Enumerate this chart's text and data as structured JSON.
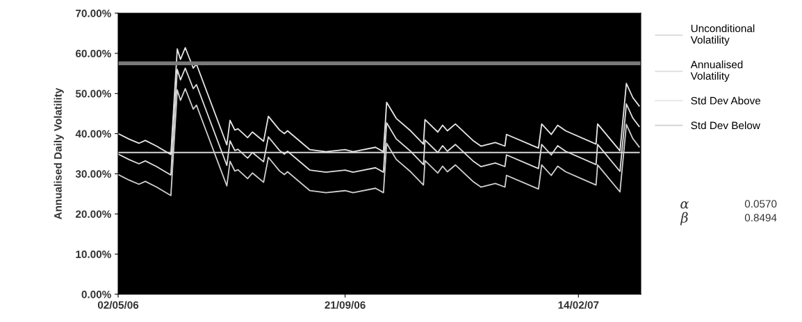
{
  "chart_data": {
    "type": "line",
    "ylabel": "Annualised Daily Volatility",
    "x": [
      "2006-05-02",
      "2006-05-09",
      "2006-05-15",
      "2006-05-19",
      "2006-05-26",
      "2006-06-04",
      "2006-06-08",
      "2006-06-10",
      "2006-06-13",
      "2006-06-18",
      "2006-06-20",
      "2006-07-09",
      "2006-07-11",
      "2006-07-14",
      "2006-07-16",
      "2006-07-22",
      "2006-07-25",
      "2006-08-01",
      "2006-08-04",
      "2006-08-11",
      "2006-08-14",
      "2006-08-16",
      "2006-08-30",
      "2006-09-09",
      "2006-09-21",
      "2006-09-26",
      "2006-10-10",
      "2006-10-15",
      "2006-10-17",
      "2006-10-23",
      "2006-11-01",
      "2006-11-09",
      "2006-11-10",
      "2006-11-18",
      "2006-11-21",
      "2006-11-24",
      "2006-11-29",
      "2006-12-10",
      "2006-12-15",
      "2006-12-24",
      "2006-12-30",
      "2006-12-31",
      "2007-01-20",
      "2007-01-22",
      "2007-01-28",
      "2007-02-01",
      "2007-02-06",
      "2007-02-25",
      "2007-02-26",
      "2007-03-12",
      "2007-03-16",
      "2007-03-20",
      "2007-03-24"
    ],
    "series": [
      {
        "name": "Unconditional Volatility",
        "color": "#d8d8d8",
        "x": [
          "2006-05-02",
          "2007-03-24"
        ],
        "values": [
          35.3,
          35.3
        ]
      },
      {
        "name": "Annualised Volatility",
        "color": "#e0e0e0",
        "values": [
          34.9,
          33.5,
          32.5,
          33.2,
          31.8,
          29.7,
          56.0,
          53.4,
          56.3,
          51.2,
          52.2,
          32.1,
          38.2,
          35.8,
          36.1,
          33.9,
          35.3,
          33.0,
          39.2,
          35.8,
          34.9,
          35.6,
          30.9,
          30.4,
          30.9,
          30.4,
          31.5,
          30.4,
          42.7,
          38.7,
          35.6,
          32.3,
          38.4,
          35.3,
          37.0,
          35.6,
          37.3,
          33.2,
          31.8,
          32.7,
          31.8,
          34.7,
          31.3,
          37.3,
          34.7,
          37.0,
          35.6,
          32.3,
          37.3,
          30.6,
          47.4,
          43.9,
          41.8
        ]
      },
      {
        "name": "Std Dev Above",
        "color": "#e8e8e8",
        "values": [
          40.0,
          38.6,
          37.6,
          38.3,
          36.9,
          34.8,
          61.1,
          58.5,
          61.4,
          56.3,
          57.3,
          37.2,
          43.3,
          40.9,
          41.2,
          39.0,
          40.4,
          38.1,
          44.3,
          40.9,
          40.0,
          40.7,
          36.0,
          35.5,
          36.0,
          35.5,
          36.6,
          35.5,
          47.8,
          43.8,
          40.7,
          37.4,
          43.5,
          40.4,
          42.1,
          40.7,
          42.4,
          38.3,
          36.9,
          37.8,
          36.9,
          39.8,
          36.4,
          42.4,
          39.8,
          42.1,
          40.7,
          37.4,
          42.4,
          35.7,
          52.5,
          49.0,
          46.9
        ]
      },
      {
        "name": "Std Dev Below",
        "color": "#d0d0d0",
        "values": [
          29.8,
          28.4,
          27.4,
          28.1,
          26.7,
          24.6,
          50.9,
          48.3,
          51.2,
          46.1,
          47.1,
          27.0,
          33.1,
          30.7,
          31.0,
          28.8,
          30.2,
          27.9,
          34.1,
          30.7,
          29.8,
          30.5,
          25.8,
          25.3,
          25.8,
          25.3,
          26.4,
          25.3,
          37.6,
          33.6,
          30.5,
          27.2,
          33.3,
          30.2,
          31.9,
          30.5,
          32.2,
          28.1,
          26.7,
          27.6,
          26.7,
          29.6,
          26.2,
          32.2,
          29.6,
          31.9,
          30.5,
          27.2,
          32.2,
          25.5,
          42.3,
          38.8,
          36.7
        ]
      }
    ],
    "ref_lines": [
      {
        "axis": "y",
        "value": 57.5,
        "color": "#7a7a7a"
      }
    ],
    "xlim": [
      "2006-05-02",
      "2007-03-25"
    ],
    "xticks": [
      {
        "value": "2006-05-02",
        "label": "02/05/06"
      },
      {
        "value": "2006-09-21",
        "label": "21/09/06"
      },
      {
        "value": "2007-02-14",
        "label": "14/02/07"
      }
    ],
    "ylim": [
      0,
      70
    ],
    "yticks": [
      {
        "value": 0,
        "label": "0.00%"
      },
      {
        "value": 10,
        "label": "10.00%"
      },
      {
        "value": 20,
        "label": "20.00%"
      },
      {
        "value": 30,
        "label": "30.00%"
      },
      {
        "value": 40,
        "label": "40.00%"
      },
      {
        "value": 50,
        "label": "50.00%"
      },
      {
        "value": 60,
        "label": "60.00%"
      },
      {
        "value": 70,
        "label": "70.00%"
      }
    ],
    "annotations": [
      "α",
      "0.0570",
      "β",
      "0.8494"
    ],
    "grid": false,
    "legend": "right",
    "marker": "none",
    "line_style": "solid"
  }
}
